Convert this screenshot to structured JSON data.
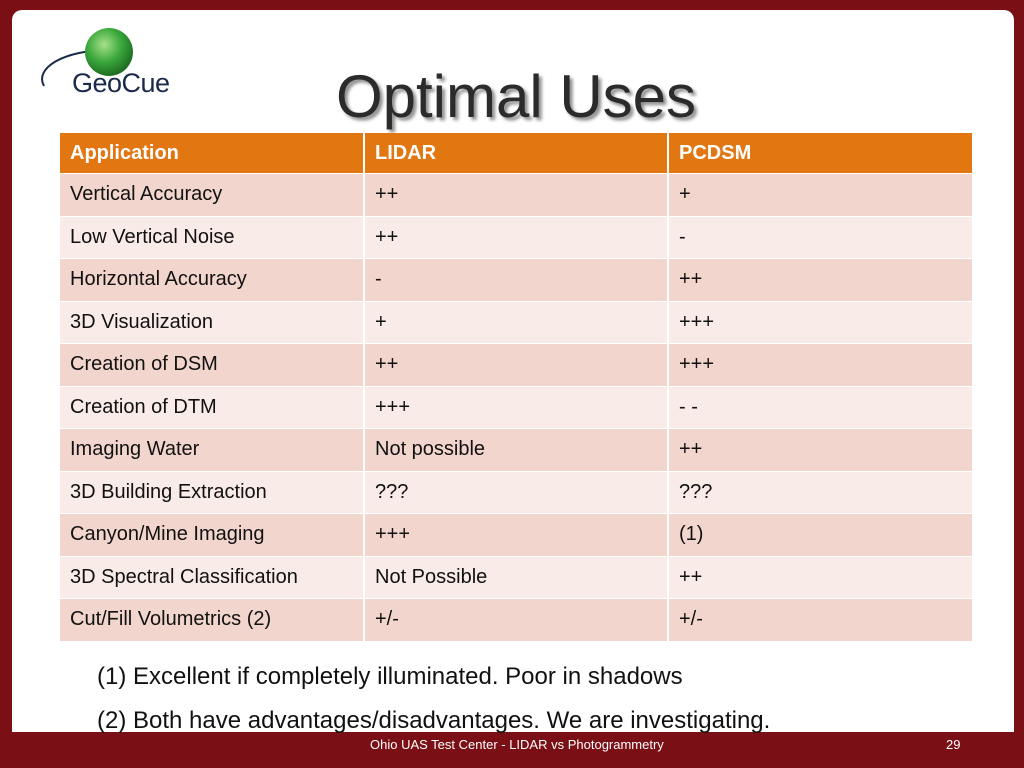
{
  "logo": {
    "text": "GeoCue",
    "colors": {
      "sphere": "#3aa83c",
      "ring": "#1b2a4a"
    }
  },
  "title": "Optimal Uses",
  "table": {
    "headers": [
      "Application",
      "LIDAR",
      "PCDSM"
    ],
    "rows": [
      [
        "Vertical Accuracy",
        "++",
        "+"
      ],
      [
        "Low Vertical Noise",
        "++",
        "-"
      ],
      [
        "Horizontal Accuracy",
        "-",
        "++"
      ],
      [
        "3D Visualization",
        "+",
        "+++"
      ],
      [
        "Creation of DSM",
        "++",
        "+++"
      ],
      [
        "Creation of DTM",
        "+++",
        "- -"
      ],
      [
        "Imaging Water",
        "Not possible",
        "++"
      ],
      [
        "3D Building Extraction",
        "???",
        "???"
      ],
      [
        "Canyon/Mine Imaging",
        "+++",
        "(1)"
      ],
      [
        "3D Spectral Classification",
        "Not Possible",
        "++"
      ],
      [
        "Cut/Fill Volumetrics (2)",
        "+/-",
        "+/-"
      ]
    ],
    "colors": {
      "header": "#e27712",
      "row_dark": "#f2d6cd",
      "row_light": "#f9ebe7"
    }
  },
  "footnotes": [
    "(1) Excellent if completely illuminated.  Poor in shadows",
    "(2) Both have advantages/disadvantages.  We are investigating."
  ],
  "footer": {
    "text": "Ohio UAS Test Center -  LIDAR vs Photogrammetry",
    "page_number": "29",
    "color": "#7a0f15"
  }
}
